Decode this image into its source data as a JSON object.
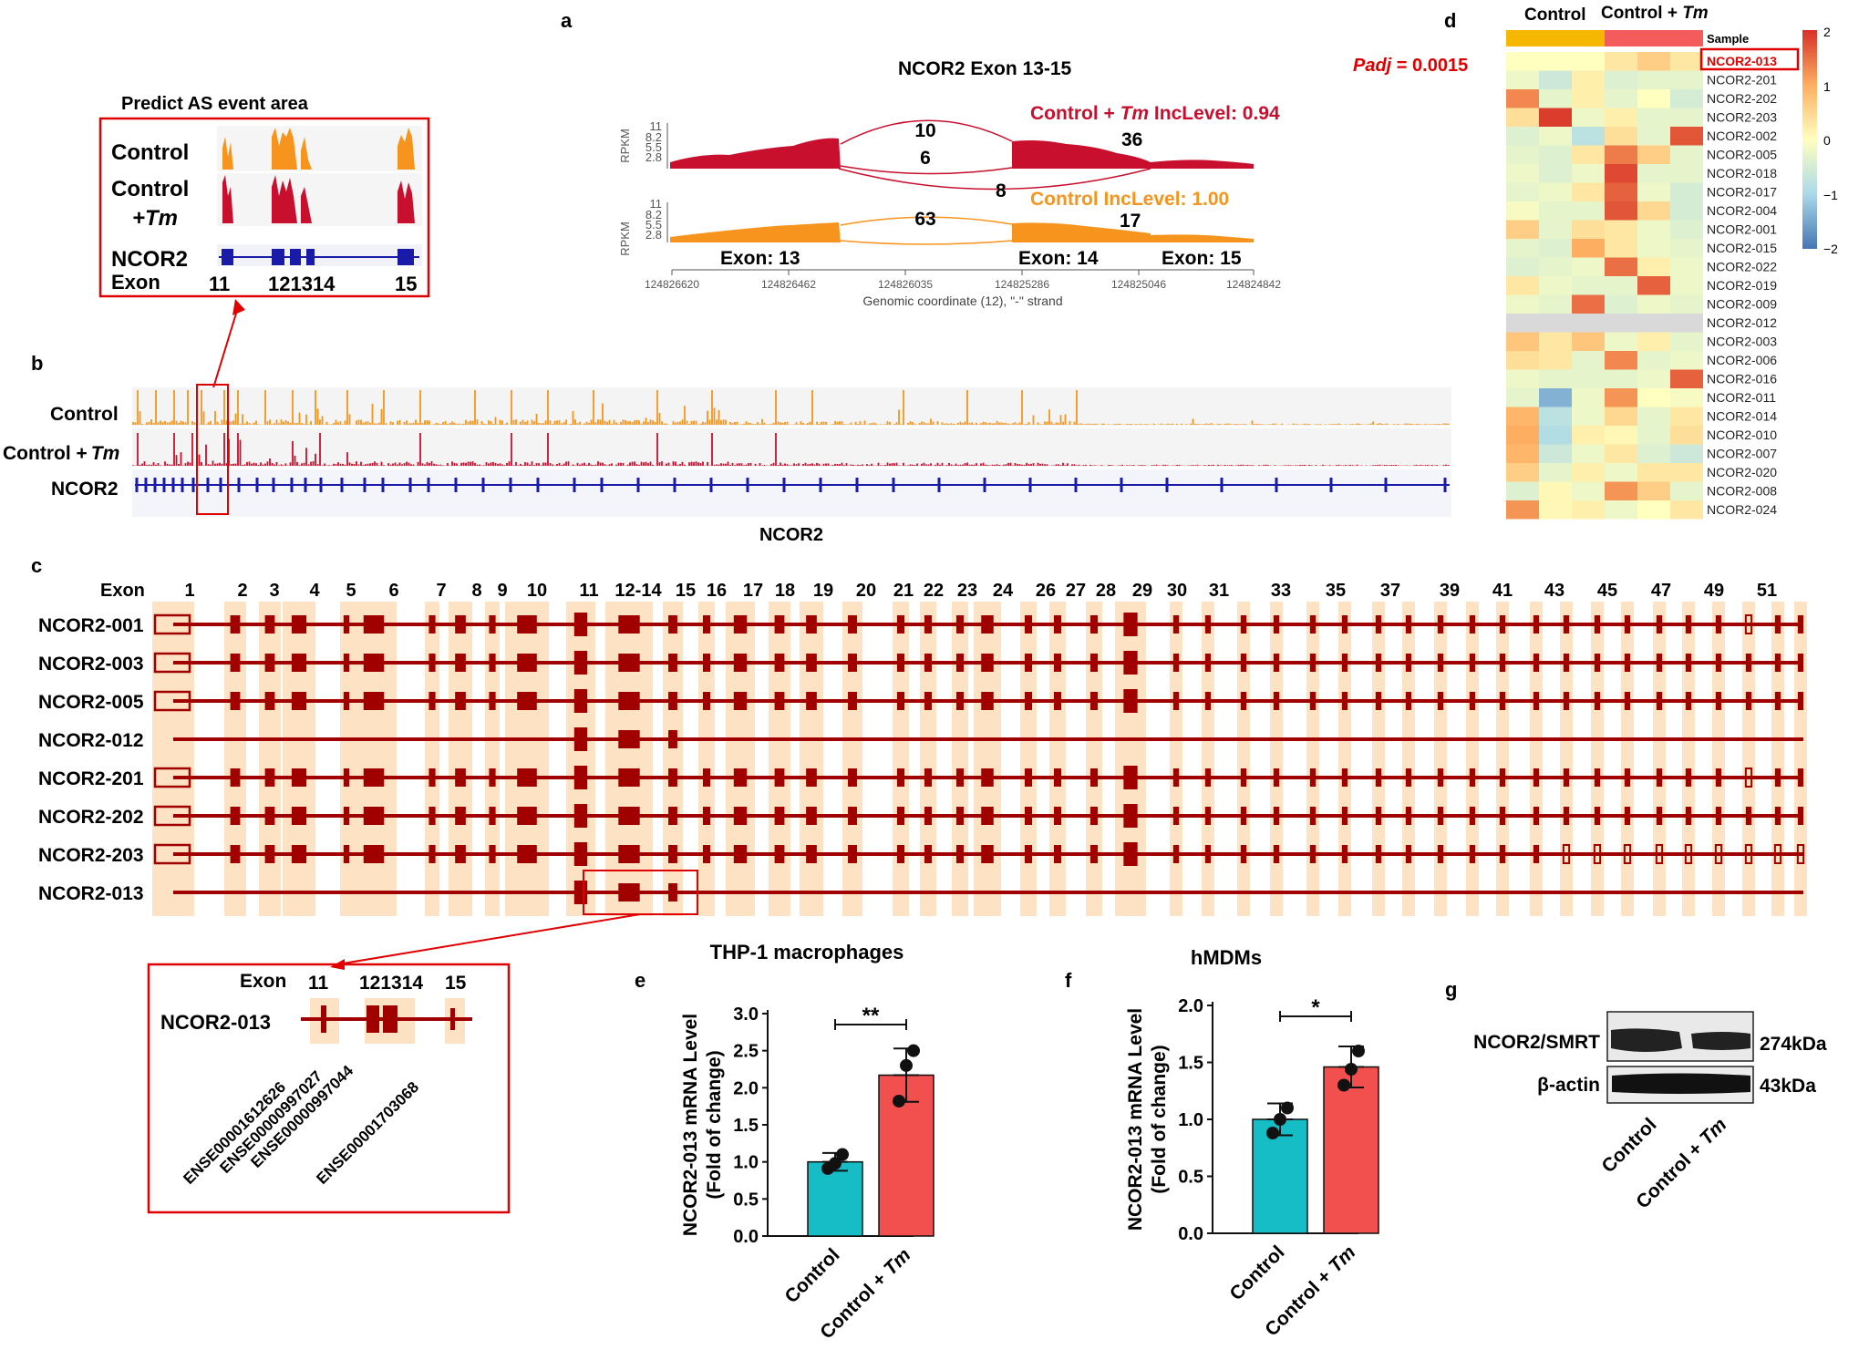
{
  "colors": {
    "control": "#f7941d",
    "tm": "#c8102e",
    "gene": "#1a1aa8",
    "exon": "#a00000",
    "bg": "#fde3c4",
    "teal": "#17bdc6",
    "red": "#f24f4f",
    "annot_red": "#e00000"
  },
  "panels": {
    "a": "a",
    "b": "b",
    "c": "c",
    "d": "d",
    "e": "e",
    "f": "f",
    "g": "g"
  },
  "inset_a": {
    "title": "Predict AS event area",
    "row1": "Control",
    "row2a": "Control",
    "row2b": "+Tm",
    "gene": "NCOR2",
    "exon": "Exon",
    "ex11": "11",
    "ex12_14": "121314",
    "ex15": "15"
  },
  "sashimi": {
    "title": "NCOR2 Exon 13-15",
    "ylabel": "RPKM",
    "ticks": [
      "11",
      "8.2",
      "5.5",
      "2.8"
    ],
    "tm_label_main": "Control + ",
    "tm_label_ital": "Tm",
    "tm_label_tail": " IncLevel: 0.94",
    "ctrl_label": "Control IncLevel: 1.00",
    "tm_counts": [
      "10",
      "6",
      "36",
      "8"
    ],
    "ctrl_counts": [
      "63",
      "17"
    ],
    "exon_labels": [
      "Exon: 13",
      "Exon: 14",
      "Exon: 15"
    ],
    "coords": [
      "124826620",
      "124826462",
      "124826035",
      "124825286",
      "124825046",
      "124824842"
    ],
    "xlabel": "Genomic coordinate (12), \"-\" strand"
  },
  "track_b": {
    "control": "Control",
    "tm_main": "Control +",
    "tm_ital": "Tm",
    "gene": "NCOR2",
    "gene_bottom": "NCOR2"
  },
  "panel_c": {
    "exon_header": "Exon",
    "exon_numbers": [
      "1",
      "2",
      "3",
      "4",
      "5",
      "6",
      "7",
      "8",
      "9",
      "10",
      "11",
      "12-14",
      "15",
      "16",
      "17",
      "18",
      "19",
      "20",
      "21",
      "22",
      "23",
      "24",
      "26",
      "27",
      "28",
      "29",
      "30",
      "31",
      "33",
      "35",
      "37",
      "39",
      "41",
      "43",
      "45",
      "47",
      "49",
      "51"
    ],
    "isoforms": [
      "NCOR2-001",
      "NCOR2-003",
      "NCOR2-005",
      "NCOR2-012",
      "NCOR2-201",
      "NCOR2-202",
      "NCOR2-203",
      "NCOR2-013"
    ]
  },
  "zoom_c": {
    "exon": "Exon",
    "ex11": "11",
    "ex12_14": "121314",
    "ex15": "15",
    "isoform": "NCOR2-013",
    "ids": [
      "ENSE00001612626",
      "ENSE00000997027",
      "ENSE00000997044",
      "ENSE00001703068"
    ]
  },
  "heatmap": {
    "col_header_1": "Control",
    "col_header_2": "Control + ",
    "col_header_2_ital": "Tm",
    "sample_label": "Sample",
    "padj_ital": "Padj",
    "padj_value": " = 0.0015",
    "rows": [
      "NCOR2-013",
      "NCOR2-201",
      "NCOR2-202",
      "NCOR2-203",
      "NCOR2-002",
      "NCOR2-005",
      "NCOR2-018",
      "NCOR2-017",
      "NCOR2-004",
      "NCOR2-001",
      "NCOR2-015",
      "NCOR2-022",
      "NCOR2-019",
      "NCOR2-009",
      "NCOR2-012",
      "NCOR2-003",
      "NCOR2-006",
      "NCOR2-016",
      "NCOR2-011",
      "NCOR2-014",
      "NCOR2-010",
      "NCOR2-007",
      "NCOR2-020",
      "NCOR2-008",
      "NCOR2-024"
    ],
    "values": [
      [
        0,
        0,
        0,
        0.3,
        0.6,
        0.3
      ],
      [
        -0.2,
        -0.6,
        0.2,
        -0.4,
        -0.3,
        -0.3
      ],
      [
        1.3,
        -0.3,
        0.2,
        -0.3,
        0,
        -0.5
      ],
      [
        0.4,
        1.9,
        -0.2,
        0.2,
        -0.3,
        -0.3
      ],
      [
        -0.4,
        -0.2,
        -0.8,
        0.4,
        -0.3,
        1.7
      ],
      [
        -0.3,
        -0.4,
        0.3,
        1.4,
        0.6,
        -0.3
      ],
      [
        -0.2,
        -0.4,
        -0.2,
        1.8,
        -0.3,
        -0.3
      ],
      [
        -0.3,
        -0.2,
        0.3,
        1.6,
        -0.2,
        -0.5
      ],
      [
        -0.1,
        -0.3,
        -0.3,
        1.7,
        0.5,
        -0.5
      ],
      [
        0.6,
        -0.3,
        0.4,
        0.3,
        -0.2,
        -0.4
      ],
      [
        -0.3,
        -0.4,
        1.0,
        0.3,
        -0.2,
        -0.3
      ],
      [
        -0.4,
        -0.3,
        -0.2,
        1.5,
        0.2,
        -0.2
      ],
      [
        0.3,
        -0.2,
        -0.3,
        -0.3,
        1.6,
        -0.2
      ],
      [
        -0.2,
        -0.3,
        1.5,
        -0.4,
        -0.2,
        -0.3
      ],
      [
        null,
        null,
        null,
        null,
        null,
        null
      ],
      [
        0.7,
        0.3,
        0.7,
        -0.2,
        0.2,
        -0.3
      ],
      [
        0.4,
        0.3,
        -0.3,
        1.3,
        -0.3,
        -0.2
      ],
      [
        -0.2,
        -0.3,
        -0.3,
        -0.3,
        -0.2,
        1.6
      ],
      [
        -0.3,
        -1.4,
        -0.2,
        1.2,
        0,
        -0.1
      ],
      [
        0.9,
        -0.8,
        -0.2,
        0.5,
        -0.3,
        0.3
      ],
      [
        1.0,
        -0.9,
        0.2,
        0.1,
        -0.3,
        0.4
      ],
      [
        0.9,
        -0.6,
        -0.2,
        0.3,
        -0.4,
        -0.6
      ],
      [
        0.6,
        -0.3,
        0.2,
        -0.2,
        0.3,
        0.3
      ],
      [
        -0.4,
        0.1,
        -0.2,
        1.2,
        0.6,
        -0.3
      ],
      [
        1.2,
        0.1,
        0.2,
        -0.2,
        0,
        0.3
      ]
    ],
    "legend_ticks": [
      "2",
      "1",
      "0",
      "−1",
      "−2"
    ]
  },
  "chart_data": [
    {
      "type": "bar",
      "panel": "e",
      "title": "THP-1 macrophages",
      "categories": [
        "Control",
        "Control + Tm"
      ],
      "values": [
        1.0,
        2.17
      ],
      "errors": [
        0.12,
        0.36
      ],
      "points": [
        [
          0.91,
          0.98,
          1.1
        ],
        [
          1.82,
          2.3,
          2.5
        ]
      ],
      "ylabel": "NCOR2-013 mRNA Level",
      "ylabel2": "(Fold of change)",
      "ylim": [
        0,
        3.0
      ],
      "yticks": [
        "0.0",
        "0.5",
        "1.0",
        "1.5",
        "2.0",
        "2.5",
        "3.0"
      ],
      "significance": "**"
    },
    {
      "type": "bar",
      "panel": "f",
      "title": "hMDMs",
      "categories": [
        "Control",
        "Control + Tm"
      ],
      "values": [
        1.0,
        1.46
      ],
      "errors": [
        0.14,
        0.18
      ],
      "points": [
        [
          0.88,
          1.0,
          1.1
        ],
        [
          1.3,
          1.44,
          1.6
        ]
      ],
      "ylabel": "NCOR2-013 mRNA Level",
      "ylabel2": "(Fold of change)",
      "ylim": [
        0,
        2.0
      ],
      "yticks": [
        "0.0",
        "0.5",
        "1.0",
        "1.5",
        "2.0"
      ],
      "significance": "*"
    }
  ],
  "bar_labels": {
    "ctrl": "Control",
    "tm_main": "Control + ",
    "tm_ital": "Tm"
  },
  "blot": {
    "band1": "NCOR2/SMRT",
    "band2": "β-actin",
    "kda1": "274kDa",
    "kda2": "43kDa",
    "lane1": "Control",
    "lane2": "Control + ",
    "lane2_ital": "Tm"
  }
}
